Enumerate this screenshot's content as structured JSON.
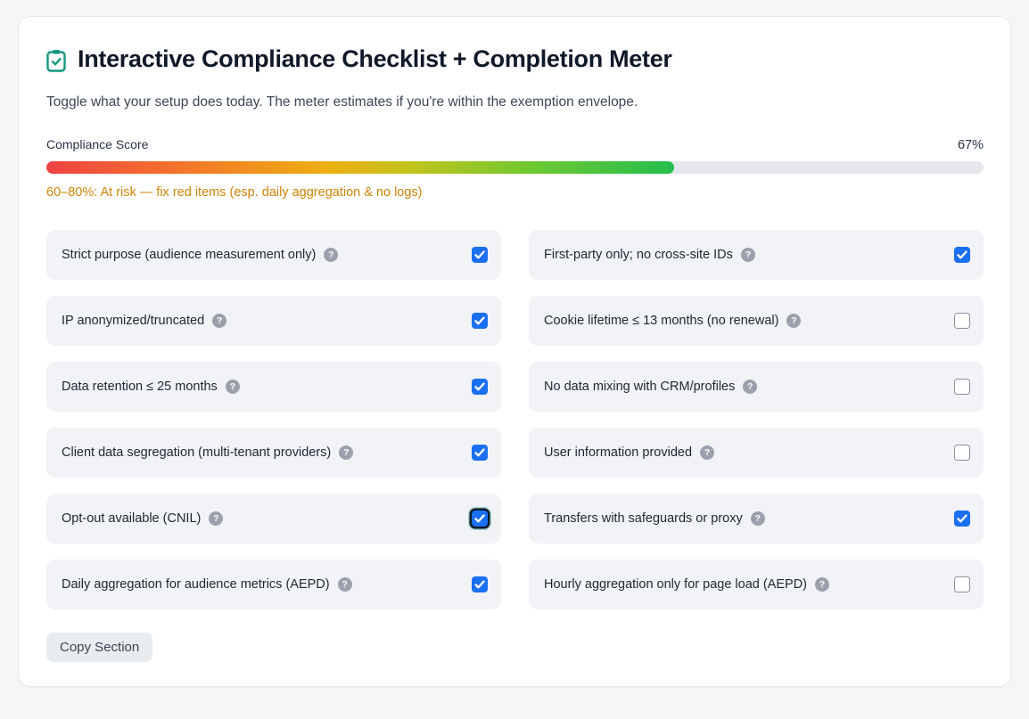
{
  "header": {
    "icon": "clipboard-check-icon",
    "icon_color": "#14967f",
    "title": "Interactive Compliance Checklist + Completion Meter",
    "subtitle": "Toggle what your setup does today. The meter estimates if you're within the exemption envelope."
  },
  "meter": {
    "label": "Compliance Score",
    "value_label": "67%",
    "percent": 67,
    "bar_gradient": "linear-gradient(90deg,#ee4343 0%,#f4762a 22%,#edaf12 45%,#c3c41d 58%,#6cc832 78%,#24bd4e 100%)",
    "track_color": "#e5e7eb",
    "status": "60–80%: At risk — fix red items (esp. daily aggregation & no logs)",
    "status_color": "#d08407"
  },
  "checklist": {
    "checkbox_checked_color": "#1a6ff3",
    "items": [
      {
        "label": "Strict purpose (audience measurement only)",
        "checked": true,
        "focused": false
      },
      {
        "label": "First-party only; no cross-site IDs",
        "checked": true,
        "focused": false
      },
      {
        "label": "IP anonymized/truncated",
        "checked": true,
        "focused": false
      },
      {
        "label": "Cookie lifetime ≤ 13 months (no renewal)",
        "checked": false,
        "focused": false
      },
      {
        "label": "Data retention ≤ 25 months",
        "checked": true,
        "focused": false
      },
      {
        "label": "No data mixing with CRM/profiles",
        "checked": false,
        "focused": false
      },
      {
        "label": "Client data segregation (multi-tenant providers)",
        "checked": true,
        "focused": false
      },
      {
        "label": "User information provided",
        "checked": false,
        "focused": false
      },
      {
        "label": "Opt-out available (CNIL)",
        "checked": true,
        "focused": true
      },
      {
        "label": "Transfers with safeguards or proxy",
        "checked": true,
        "focused": false
      },
      {
        "label": "Daily aggregation for audience metrics (AEPD)",
        "checked": true,
        "focused": false
      },
      {
        "label": "Hourly aggregation only for page load (AEPD)",
        "checked": false,
        "focused": false
      }
    ]
  },
  "footer": {
    "copy_button_label": "Copy Section"
  }
}
